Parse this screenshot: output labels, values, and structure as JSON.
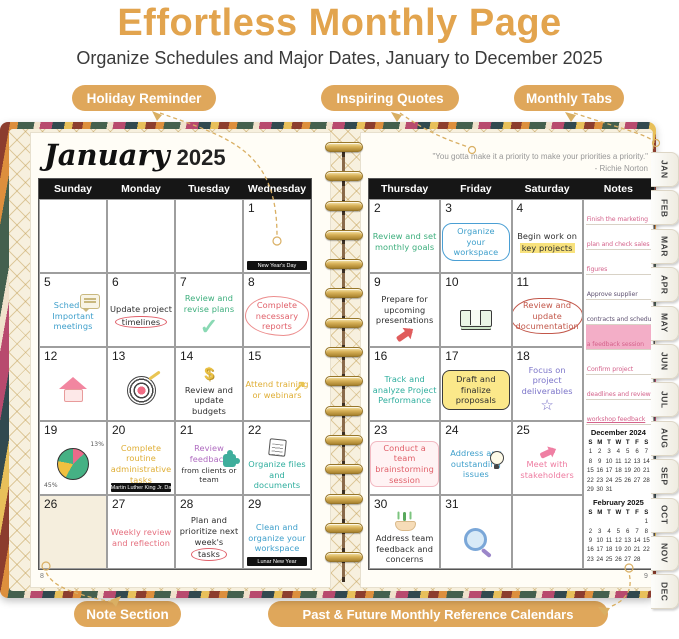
{
  "header": {
    "title": "Effortless Monthly Page",
    "subtitle": "Organize Schedules and Major Dates, January to December 2025"
  },
  "callouts": {
    "holiday_reminder": "Holiday Reminder",
    "inspiring_quotes": "Inspiring Quotes",
    "monthly_tabs": "Monthly Tabs",
    "note_section": "Note Section",
    "reference_calendars": "Past & Future Monthly Reference Calendars"
  },
  "colors": {
    "accent_gold": "#E2A44E",
    "pill_gold": "#DFA75B",
    "header_black": "#161616"
  },
  "planner": {
    "month": "January",
    "year": "2025",
    "quote": "\"You gotta make it a priority to make your priorities a priority.\"",
    "quote_author": "- Richie Norton",
    "page_left": "8",
    "page_right": "9",
    "tabs": [
      "JAN",
      "FEB",
      "MAR",
      "APR",
      "MAY",
      "JUN",
      "JUL",
      "AUG",
      "SEP",
      "OCT",
      "NOV",
      "DEC"
    ],
    "left_day_headers": [
      "Sunday",
      "Monday",
      "Tuesday",
      "Wednesday"
    ],
    "right_day_headers": [
      "Thursday",
      "Friday",
      "Saturday"
    ],
    "notes_header": "Notes",
    "left_cells": [
      {},
      {},
      {},
      {
        "date": "1",
        "holiday": "New Year's Day"
      },
      {
        "date": "5",
        "blocks": [
          [
            "icon",
            "speech-bubble"
          ],
          [
            "text",
            "Schedule Important meetings",
            "blue"
          ]
        ]
      },
      {
        "date": "6",
        "blocks": [
          [
            "text",
            "Update project",
            "ink"
          ],
          [
            "text",
            "timelines",
            "ink circle-red"
          ]
        ]
      },
      {
        "date": "7",
        "blocks": [
          [
            "text",
            "Review and revise plans",
            "green"
          ],
          [
            "icon",
            "checkmark"
          ]
        ]
      },
      {
        "date": "8",
        "blocks": [
          [
            "text",
            "Complete necessary reports",
            "red cloud-red"
          ]
        ]
      },
      {
        "date": "12",
        "blocks": [
          [
            "icon",
            "house"
          ]
        ]
      },
      {
        "date": "13",
        "blocks": [
          [
            "icon",
            "target"
          ]
        ]
      },
      {
        "date": "14",
        "blocks": [
          [
            "icon",
            "dollar-sign"
          ],
          [
            "text",
            "Review and update budgets",
            "ink"
          ]
        ]
      },
      {
        "date": "15",
        "blocks": [
          [
            "icon",
            "arrow-up-yellow"
          ],
          [
            "text",
            "Attend training or webinars",
            "yellow"
          ]
        ]
      },
      {
        "date": "19",
        "blocks": [
          [
            "icon",
            "pie-chart"
          ],
          [
            "text",
            "13%",
            "plabel pa"
          ],
          [
            "text",
            "45%",
            "plabel pb"
          ]
        ]
      },
      {
        "date": "20",
        "holiday": "Martin Luther King Jr. Day",
        "blocks": [
          [
            "text",
            "Complete routine administrative tasks",
            "yellow"
          ]
        ]
      },
      {
        "date": "21",
        "blocks": [
          [
            "icon",
            "puzzle-piece"
          ],
          [
            "text",
            "Review feedback",
            "violet"
          ],
          [
            "text",
            "from clients or team",
            "ink small"
          ]
        ]
      },
      {
        "date": "22",
        "blocks": [
          [
            "icon",
            "document"
          ],
          [
            "text",
            "Organize files and documents",
            "teal"
          ]
        ]
      },
      {
        "date": "26",
        "shaded": true
      },
      {
        "date": "27",
        "blocks": [
          [
            "text",
            "Weekly review and reflection",
            "pinkred"
          ]
        ]
      },
      {
        "date": "28",
        "blocks": [
          [
            "text",
            "Plan and prioritize next week's",
            "ink"
          ],
          [
            "text",
            "tasks",
            "ink circle-red"
          ]
        ]
      },
      {
        "date": "29",
        "holiday": "Lunar New Year",
        "blocks": [
          [
            "text",
            "Clean and organize your workspace",
            "blue"
          ]
        ]
      }
    ],
    "right_cells": [
      {
        "date": "2",
        "blocks": [
          [
            "text",
            "Review and set monthly goals",
            "green"
          ]
        ]
      },
      {
        "date": "3",
        "blocks": [
          [
            "text",
            "Organize your workspace",
            "blue cloud-blue"
          ]
        ]
      },
      {
        "date": "4",
        "blocks": [
          [
            "text",
            "Begin work on",
            "ink"
          ],
          [
            "text",
            "key projects",
            "ink highlight"
          ]
        ]
      },
      {
        "date": "9",
        "blocks": [
          [
            "text",
            "Prepare for upcoming presentations",
            "ink"
          ],
          [
            "icon",
            "arrow-red"
          ]
        ]
      },
      {
        "date": "10",
        "blocks": [
          [
            "icon",
            "money-stack"
          ]
        ]
      },
      {
        "date": "11",
        "blocks": [
          [
            "text",
            "Review and update documentation",
            "rust circle-rust"
          ]
        ]
      },
      {
        "date": "16",
        "blocks": [
          [
            "text",
            "Track and analyze Project Performance",
            "teal"
          ]
        ]
      },
      {
        "date": "17",
        "blocks": [
          [
            "text",
            "Draft and finalize proposals",
            "ink bubble-yellow"
          ]
        ]
      },
      {
        "date": "18",
        "blocks": [
          [
            "text",
            "Focus on project deliverables",
            "purple"
          ],
          [
            "icon",
            "star"
          ]
        ]
      },
      {
        "date": "23",
        "blocks": [
          [
            "text",
            "Conduct a team brainstorming session",
            "red bubble-pink"
          ]
        ]
      },
      {
        "date": "24",
        "blocks": [
          [
            "icon",
            "lightbulb"
          ],
          [
            "text",
            "Address any outstanding issues",
            "blue"
          ]
        ]
      },
      {
        "date": "25",
        "blocks": [
          [
            "icon",
            "arrow-pink"
          ],
          [
            "text",
            "Meet with stakeholders",
            "pink"
          ]
        ]
      },
      {
        "date": "30",
        "blocks": [
          [
            "icon",
            "plant-hand"
          ],
          [
            "text",
            "Address team feedback and concerns",
            "ink"
          ]
        ]
      },
      {
        "date": "31",
        "blocks": [
          [
            "icon",
            "magnifier"
          ]
        ]
      },
      {}
    ],
    "notes_lines": [
      {
        "t": "Finish the marketing",
        "c": "npink"
      },
      {
        "t": "plan and check sales",
        "c": "npink"
      },
      {
        "t": "figures",
        "c": "npink"
      },
      {
        "t": "Approve supplier",
        "c": "ndark"
      },
      {
        "t": "contracts and schedule",
        "c": "ndark"
      },
      {
        "t": "a feedback session",
        "c": "npink nhl"
      },
      {
        "t": "Confirm project",
        "c": "npink"
      },
      {
        "t": "deadlines and review",
        "c": "npink"
      },
      {
        "t": "workshop feedback",
        "c": "npink nunderline"
      }
    ],
    "mini_calendars": [
      {
        "title": "December 2024",
        "days": [
          "S",
          "M",
          "T",
          "W",
          "T",
          "F",
          "S"
        ],
        "weeks": [
          [
            "1",
            "2",
            "3",
            "4",
            "5",
            "6",
            "7"
          ],
          [
            "8",
            "9",
            "10",
            "11",
            "12",
            "13",
            "14"
          ],
          [
            "15",
            "16",
            "17",
            "18",
            "19",
            "20",
            "21"
          ],
          [
            "22",
            "23",
            "24",
            "25",
            "26",
            "27",
            "28"
          ],
          [
            "29",
            "30",
            "31",
            "",
            "",
            "",
            ""
          ]
        ]
      },
      {
        "title": "February 2025",
        "days": [
          "S",
          "M",
          "T",
          "W",
          "T",
          "F",
          "S"
        ],
        "weeks": [
          [
            "",
            "",
            "",
            "",
            "",
            "",
            "1"
          ],
          [
            "2",
            "3",
            "4",
            "5",
            "6",
            "7",
            "8"
          ],
          [
            "9",
            "10",
            "11",
            "12",
            "13",
            "14",
            "15"
          ],
          [
            "16",
            "17",
            "18",
            "19",
            "20",
            "21",
            "22"
          ],
          [
            "23",
            "24",
            "25",
            "26",
            "27",
            "28",
            ""
          ]
        ]
      }
    ]
  }
}
